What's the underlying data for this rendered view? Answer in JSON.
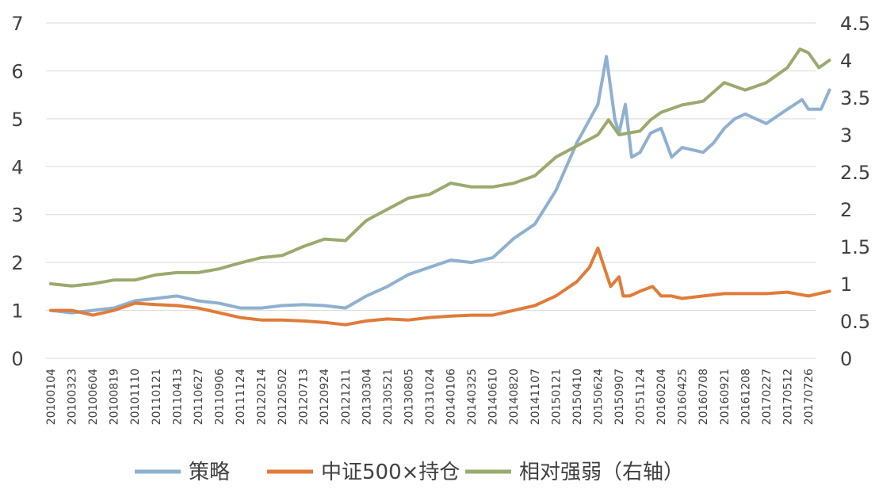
{
  "chart_data": {
    "type": "line",
    "title": "",
    "xlabel": "",
    "ylabel": "",
    "y_left": {
      "ticks": [
        0,
        1,
        2,
        3,
        4,
        5,
        6,
        7
      ],
      "range": [
        0,
        7
      ]
    },
    "y_right": {
      "ticks": [
        "0",
        "0.5",
        "1",
        "1.5",
        "2",
        "2.5",
        "3",
        "3.5",
        "4",
        "4.5"
      ],
      "range": [
        0,
        4.5
      ]
    },
    "x_tick_labels": [
      "20100104",
      "20100323",
      "20100604",
      "20100819",
      "20101110",
      "20110121",
      "20110413",
      "20110627",
      "20110906",
      "20111124",
      "20120214",
      "20120502",
      "20120713",
      "20120924",
      "20121211",
      "20130304",
      "20130521",
      "20130805",
      "20131024",
      "20140106",
      "20140325",
      "20140610",
      "20140820",
      "20141107",
      "20150121",
      "20150410",
      "20150624",
      "20150907",
      "20151124",
      "20160204",
      "20160425",
      "20160708",
      "20160921",
      "20161208",
      "20170227",
      "20170512",
      "20170726"
    ],
    "grid": true,
    "legend_position": "bottom",
    "series": [
      {
        "name": "策略",
        "axis": "left",
        "color": "#8fb0d0",
        "x": [
          0,
          1,
          2,
          3,
          4,
          5,
          6,
          7,
          8,
          9,
          10,
          11,
          12,
          13,
          14,
          15,
          16,
          17,
          18,
          19,
          20,
          21,
          22,
          23,
          24,
          25,
          26,
          26.4,
          26.8,
          27,
          27.3,
          27.6,
          28,
          28.5,
          29,
          29.5,
          30,
          31,
          31.5,
          32,
          32.5,
          33,
          34,
          35,
          35.7,
          36,
          36.6,
          37
        ],
        "values": [
          1.0,
          0.95,
          1.0,
          1.05,
          1.2,
          1.25,
          1.3,
          1.2,
          1.15,
          1.05,
          1.05,
          1.1,
          1.12,
          1.1,
          1.05,
          1.3,
          1.5,
          1.75,
          1.9,
          2.05,
          2.0,
          2.1,
          2.5,
          2.8,
          3.5,
          4.5,
          5.3,
          6.3,
          5.0,
          4.7,
          5.3,
          4.2,
          4.3,
          4.7,
          4.8,
          4.2,
          4.4,
          4.3,
          4.5,
          4.8,
          5.0,
          5.1,
          4.9,
          5.2,
          5.4,
          5.2,
          5.2,
          5.6
        ]
      },
      {
        "name": "中证500×持仓",
        "axis": "left",
        "color": "#e07b39",
        "x": [
          0,
          1,
          2,
          3,
          4,
          5,
          6,
          7,
          8,
          9,
          10,
          11,
          12,
          13,
          14,
          15,
          16,
          17,
          18,
          19,
          20,
          21,
          22,
          23,
          24,
          25,
          25.6,
          26,
          26.6,
          27,
          27.2,
          27.5,
          28,
          28.6,
          29,
          29.5,
          30,
          31,
          32,
          33,
          34,
          35,
          36,
          37
        ],
        "values": [
          1.0,
          1.0,
          0.9,
          1.0,
          1.15,
          1.12,
          1.1,
          1.05,
          0.95,
          0.85,
          0.8,
          0.8,
          0.78,
          0.75,
          0.7,
          0.78,
          0.82,
          0.8,
          0.85,
          0.88,
          0.9,
          0.9,
          1.0,
          1.1,
          1.3,
          1.6,
          1.9,
          2.3,
          1.5,
          1.7,
          1.3,
          1.3,
          1.4,
          1.5,
          1.3,
          1.3,
          1.25,
          1.3,
          1.35,
          1.35,
          1.35,
          1.38,
          1.3,
          1.4
        ]
      },
      {
        "name": "相对强弱（右轴）",
        "axis": "right",
        "color": "#9aaa6e",
        "x": [
          0,
          1,
          2,
          3,
          4,
          5,
          6,
          7,
          8,
          9,
          10,
          11,
          12,
          13,
          14,
          15,
          16,
          17,
          18,
          19,
          20,
          21,
          22,
          23,
          24,
          25,
          26,
          26.5,
          27,
          28,
          28.5,
          29,
          30,
          31,
          32,
          33,
          34,
          35,
          35.6,
          36,
          36.5,
          37
        ],
        "values": [
          1.0,
          0.97,
          1.0,
          1.05,
          1.05,
          1.12,
          1.15,
          1.15,
          1.2,
          1.28,
          1.35,
          1.38,
          1.5,
          1.6,
          1.58,
          1.85,
          2.0,
          2.15,
          2.2,
          2.35,
          2.3,
          2.3,
          2.35,
          2.45,
          2.7,
          2.85,
          3.0,
          3.2,
          3.0,
          3.05,
          3.2,
          3.3,
          3.4,
          3.45,
          3.7,
          3.6,
          3.7,
          3.9,
          4.15,
          4.1,
          3.9,
          4.0
        ]
      }
    ]
  }
}
